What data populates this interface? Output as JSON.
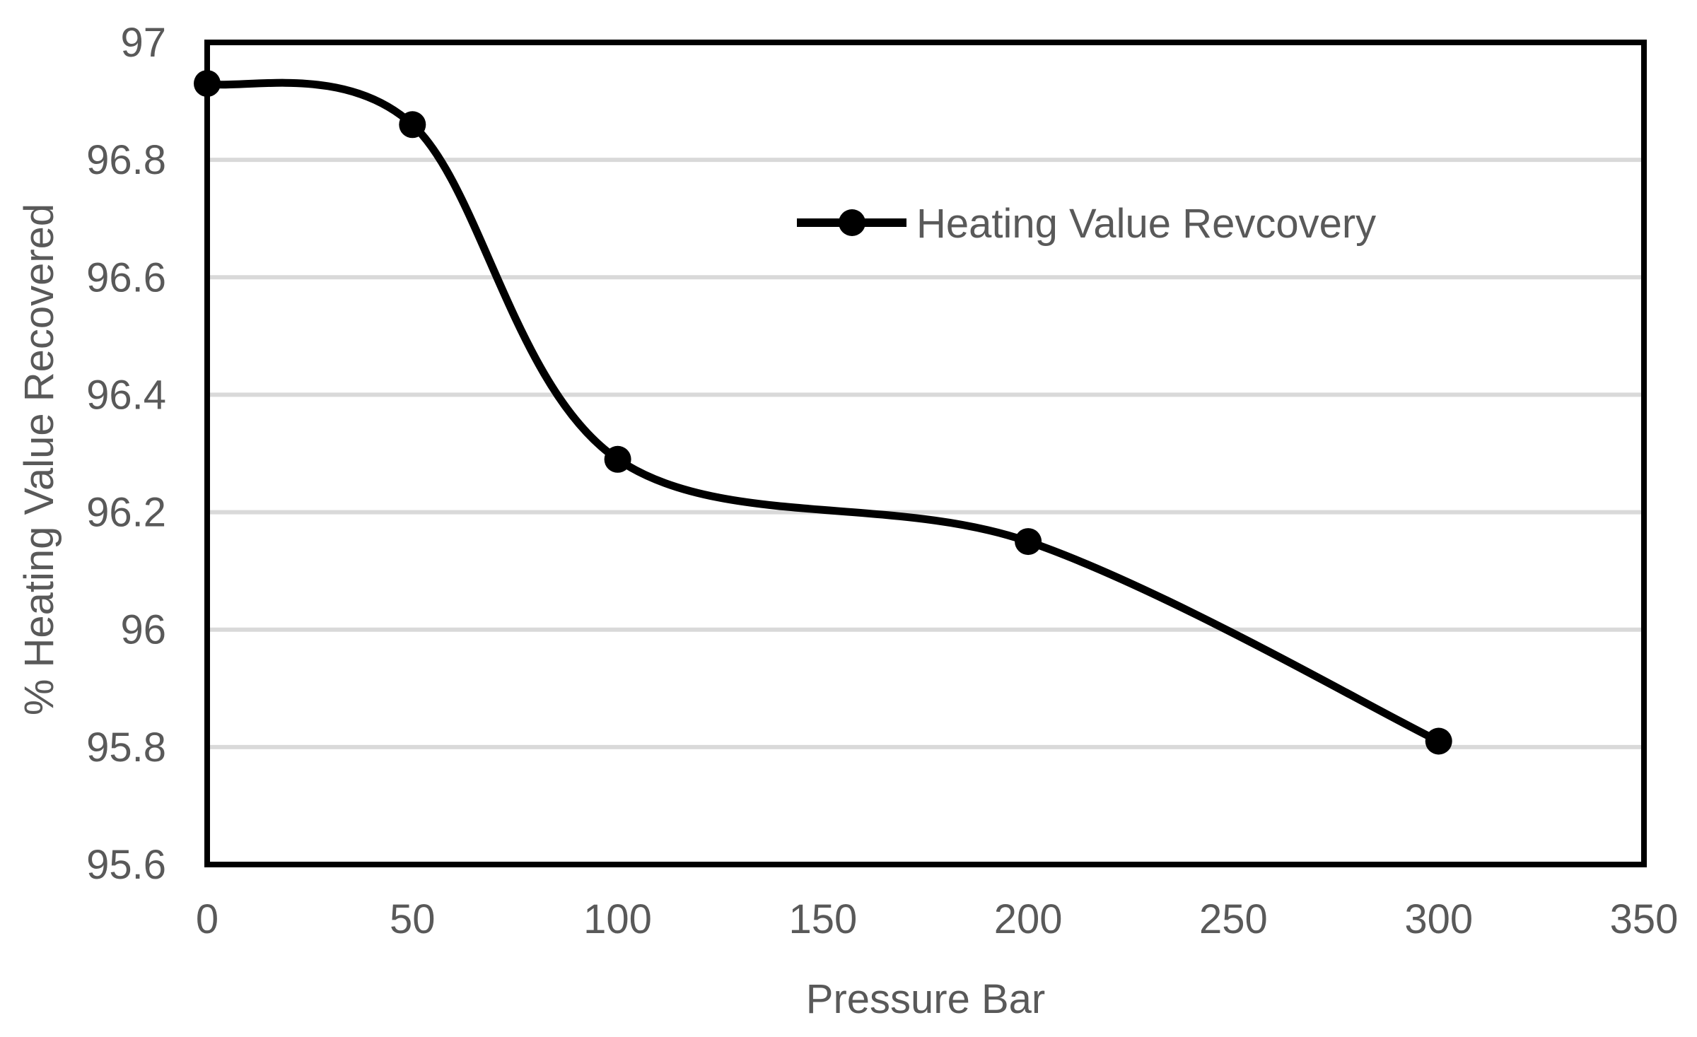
{
  "chart_data": {
    "type": "line",
    "title": "",
    "xlabel": "Pressure Bar",
    "ylabel": "% Heating Value Recovered",
    "x": [
      0,
      50,
      100,
      200,
      300
    ],
    "series": [
      {
        "name": "Heating Value Revcovery",
        "values": [
          96.93,
          96.86,
          96.29,
          96.15,
          95.81
        ],
        "color": "#000000",
        "marker": "circle",
        "line_style": "smooth"
      }
    ],
    "xlim": [
      0,
      350
    ],
    "ylim": [
      95.6,
      97
    ],
    "x_ticks": {
      "values": [
        0,
        50,
        100,
        150,
        200,
        250,
        300,
        350
      ],
      "labels": [
        "0",
        "50",
        "100",
        "150",
        "200",
        "250",
        "300",
        "350"
      ]
    },
    "y_ticks": {
      "values": [
        95.6,
        95.8,
        96,
        96.2,
        96.4,
        96.6,
        96.8,
        97
      ],
      "labels": [
        "95.6",
        "95.8",
        "96",
        "96.2",
        "96.4",
        "96.6",
        "96.8",
        "97"
      ]
    },
    "grid": "horizontal",
    "legend": {
      "position": "inside-top-right",
      "entries": [
        "Heating Value Revcovery"
      ]
    },
    "colors": {
      "series": "#000000",
      "grid": "#D9D9D9",
      "border": "#000000",
      "text": "#595959",
      "background": "#FFFFFF"
    }
  }
}
